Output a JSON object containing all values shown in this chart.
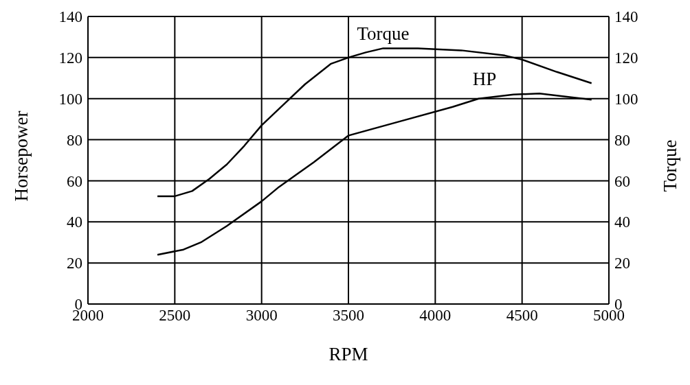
{
  "chart_data": {
    "type": "line",
    "xlabel": "RPM",
    "ylabel": "Horsepower",
    "y2label": "Torque",
    "xlim": [
      2000,
      5000
    ],
    "xticks": [
      2000,
      2500,
      3000,
      3500,
      4000,
      4500,
      5000
    ],
    "ylim": [
      0,
      140
    ],
    "yticks": [
      0,
      20,
      40,
      60,
      80,
      100,
      120,
      140
    ],
    "y2lim": [
      0,
      140
    ],
    "y2ticks": [
      0,
      20,
      40,
      60,
      80,
      100,
      120,
      140
    ],
    "grid": true,
    "legend": false,
    "marker": "none",
    "line_style": "solid",
    "series": [
      {
        "name": "Torque",
        "color": "#000000",
        "axis": "y2",
        "x": [
          2400,
          2500,
          2600,
          2700,
          2800,
          2900,
          3000,
          3100,
          3250,
          3400,
          3500,
          3600,
          3700,
          3900,
          4150,
          4400,
          4500,
          4700,
          4900
        ],
        "values": [
          52.5,
          52.5,
          55,
          61,
          68,
          77,
          87,
          95,
          107,
          117,
          120,
          122.5,
          124.5,
          124.5,
          123.5,
          121,
          119,
          113,
          107.5
        ]
      },
      {
        "name": "HP",
        "color": "#000000",
        "axis": "y",
        "x": [
          2400,
          2550,
          2650,
          2800,
          3000,
          3100,
          3300,
          3500,
          3800,
          4100,
          4250,
          4450,
          4600,
          4900
        ],
        "values": [
          24,
          26.5,
          30,
          38,
          50,
          57,
          69,
          82,
          89,
          96,
          100,
          102,
          102.5,
          99.5
        ]
      }
    ]
  }
}
